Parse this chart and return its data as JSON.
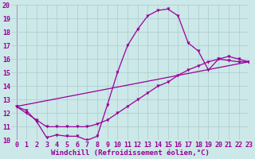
{
  "xlabel": "Windchill (Refroidissement éolien,°C)",
  "bg_color": "#cce8e8",
  "line_color": "#990099",
  "xlim": [
    -0.5,
    23
  ],
  "ylim": [
    10,
    20
  ],
  "xticks": [
    0,
    1,
    2,
    3,
    4,
    5,
    6,
    7,
    8,
    9,
    10,
    11,
    12,
    13,
    14,
    15,
    16,
    17,
    18,
    19,
    20,
    21,
    22,
    23
  ],
  "yticks": [
    10,
    11,
    12,
    13,
    14,
    15,
    16,
    17,
    18,
    19,
    20
  ],
  "grid_color": "#aacccc",
  "xlabel_fontsize": 6.5,
  "tick_fontsize": 6,
  "marker_size": 2.5,
  "line_width": 0.9,
  "curve1_x": [
    0,
    1,
    2,
    3,
    4,
    5,
    6,
    7,
    8,
    9,
    10,
    11,
    12,
    13,
    14,
    15,
    16,
    17,
    18,
    19,
    20,
    21,
    22,
    23
  ],
  "curve1_y": [
    12.5,
    12.2,
    11.4,
    10.2,
    10.4,
    10.3,
    10.3,
    10.0,
    10.3,
    12.6,
    15.0,
    17.0,
    18.2,
    19.2,
    19.6,
    19.7,
    19.2,
    17.2,
    16.6,
    15.2,
    16.0,
    15.9,
    15.8,
    15.8
  ],
  "curve2_x": [
    0,
    1,
    2,
    3,
    4,
    5,
    6,
    7,
    8,
    9,
    10,
    11,
    12,
    13,
    14,
    15,
    16,
    17,
    18,
    19,
    20,
    21,
    22,
    23
  ],
  "curve2_y": [
    12.5,
    12.0,
    11.5,
    11.0,
    11.0,
    11.0,
    11.0,
    11.0,
    11.2,
    11.5,
    12.0,
    12.5,
    13.0,
    13.5,
    14.0,
    14.3,
    14.8,
    15.2,
    15.5,
    15.8,
    16.0,
    16.2,
    16.0,
    15.8
  ],
  "curve3_x": [
    0,
    23
  ],
  "curve3_y": [
    12.5,
    15.8
  ]
}
